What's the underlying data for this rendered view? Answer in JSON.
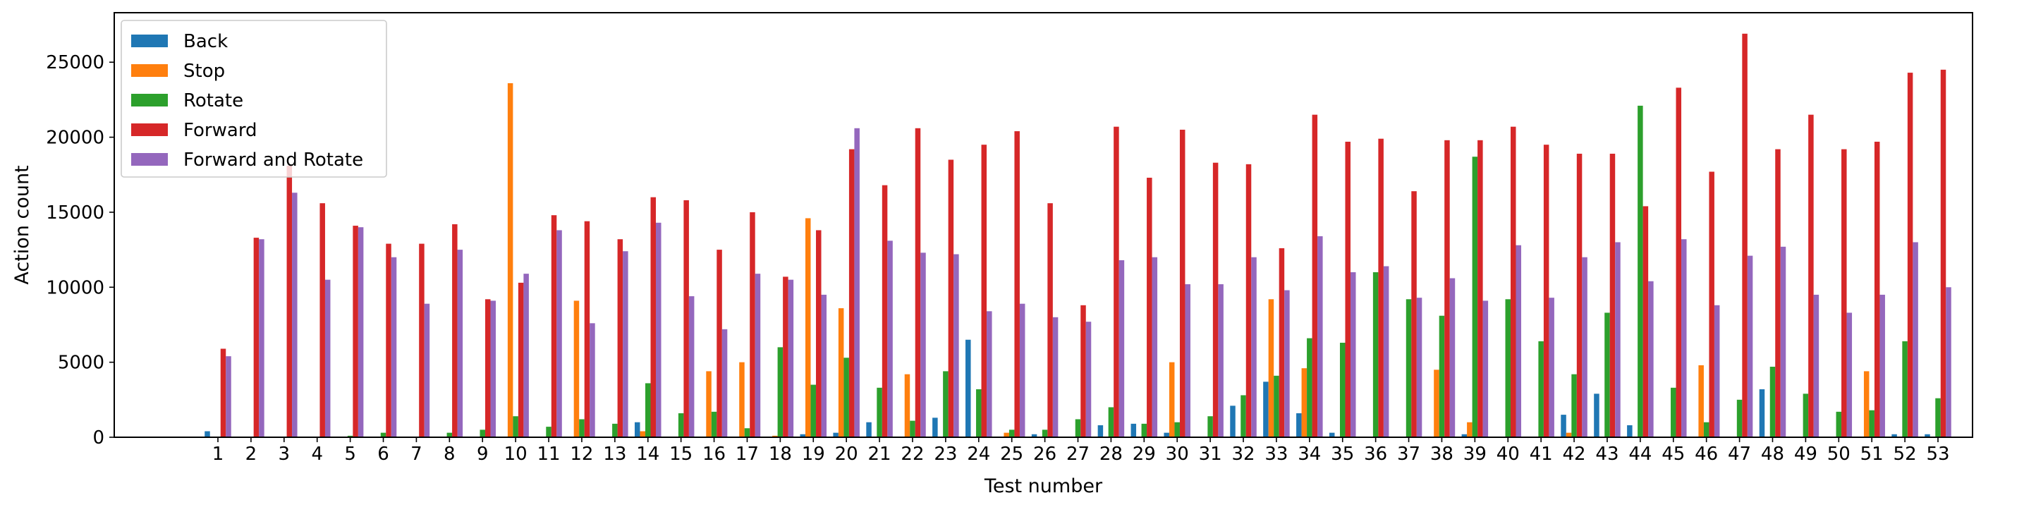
{
  "chart_data": {
    "type": "bar",
    "xlabel": "Test number",
    "ylabel": "Action count",
    "ylim": [
      0,
      28300
    ],
    "yticks": [
      0,
      5000,
      10000,
      15000,
      20000,
      25000
    ],
    "grid": false,
    "legend_position": "top-left",
    "categories": [
      "1",
      "2",
      "3",
      "4",
      "5",
      "6",
      "7",
      "8",
      "9",
      "10",
      "11",
      "12",
      "13",
      "14",
      "15",
      "16",
      "17",
      "18",
      "19",
      "20",
      "21",
      "22",
      "23",
      "24",
      "25",
      "26",
      "27",
      "28",
      "29",
      "30",
      "31",
      "32",
      "33",
      "34",
      "35",
      "36",
      "37",
      "38",
      "39",
      "40",
      "41",
      "42",
      "43",
      "44",
      "45",
      "46",
      "47",
      "48",
      "49",
      "50",
      "51",
      "52",
      "53"
    ],
    "series": [
      {
        "name": "Back",
        "color": "#1f77b4",
        "values": [
          400,
          0,
          0,
          0,
          0,
          0,
          0,
          0,
          0,
          0,
          0,
          0,
          0,
          1000,
          0,
          0,
          0,
          0,
          200,
          300,
          1000,
          0,
          1300,
          6500,
          0,
          200,
          0,
          800,
          900,
          300,
          0,
          2100,
          3700,
          1600,
          300,
          0,
          0,
          0,
          200,
          0,
          0,
          1500,
          2900,
          800,
          0,
          0,
          0,
          3200,
          0,
          0,
          0,
          200,
          200
        ]
      },
      {
        "name": "Stop",
        "color": "#ff7f0e",
        "values": [
          0,
          0,
          0,
          0,
          0,
          0,
          0,
          0,
          0,
          23600,
          0,
          9100,
          0,
          400,
          0,
          4400,
          5000,
          100,
          14600,
          8600,
          0,
          4200,
          0,
          0,
          300,
          0,
          0,
          0,
          0,
          5000,
          0,
          0,
          9200,
          4600,
          0,
          0,
          0,
          4500,
          1000,
          0,
          0,
          300,
          0,
          0,
          0,
          4800,
          0,
          0,
          0,
          0,
          4400,
          0,
          0
        ]
      },
      {
        "name": "Rotate",
        "color": "#2ca02c",
        "values": [
          0,
          0,
          0,
          0,
          100,
          300,
          0,
          300,
          500,
          1400,
          700,
          1200,
          900,
          3600,
          1600,
          1700,
          600,
          6000,
          3500,
          5300,
          3300,
          1100,
          4400,
          3200,
          500,
          500,
          1200,
          2000,
          900,
          1000,
          1400,
          2800,
          4100,
          6600,
          6300,
          11000,
          9200,
          8100,
          18700,
          9200,
          6400,
          4200,
          8300,
          22100,
          3300,
          1000,
          2500,
          4700,
          2900,
          1700,
          1800,
          6400,
          2600
        ]
      },
      {
        "name": "Forward",
        "color": "#d62728",
        "values": [
          5900,
          13300,
          18100,
          15600,
          14100,
          12900,
          12900,
          14200,
          9200,
          10300,
          14800,
          14400,
          13200,
          16000,
          15800,
          12500,
          15000,
          10700,
          13800,
          19200,
          16800,
          20600,
          18500,
          19500,
          20400,
          15600,
          8800,
          20700,
          17300,
          20500,
          18300,
          18200,
          12600,
          21500,
          19700,
          19900,
          16400,
          19800,
          19800,
          20700,
          19500,
          18900,
          18900,
          15400,
          23300,
          17700,
          26900,
          19200,
          21500,
          19200,
          19700,
          24300,
          24500
        ]
      },
      {
        "name": "Forward and Rotate",
        "color": "#9467bd",
        "values": [
          5400,
          13200,
          16300,
          10500,
          14000,
          12000,
          8900,
          12500,
          9100,
          10900,
          13800,
          7600,
          12400,
          14300,
          9400,
          7200,
          10900,
          10500,
          9500,
          20600,
          13100,
          12300,
          12200,
          8400,
          8900,
          8000,
          7700,
          11800,
          12000,
          10200,
          10200,
          12000,
          9800,
          13400,
          11000,
          11400,
          9300,
          10600,
          9100,
          12800,
          9300,
          12000,
          13000,
          10400,
          13200,
          8800,
          12100,
          12700,
          9500,
          8300,
          9500,
          13000,
          10000
        ]
      }
    ]
  }
}
